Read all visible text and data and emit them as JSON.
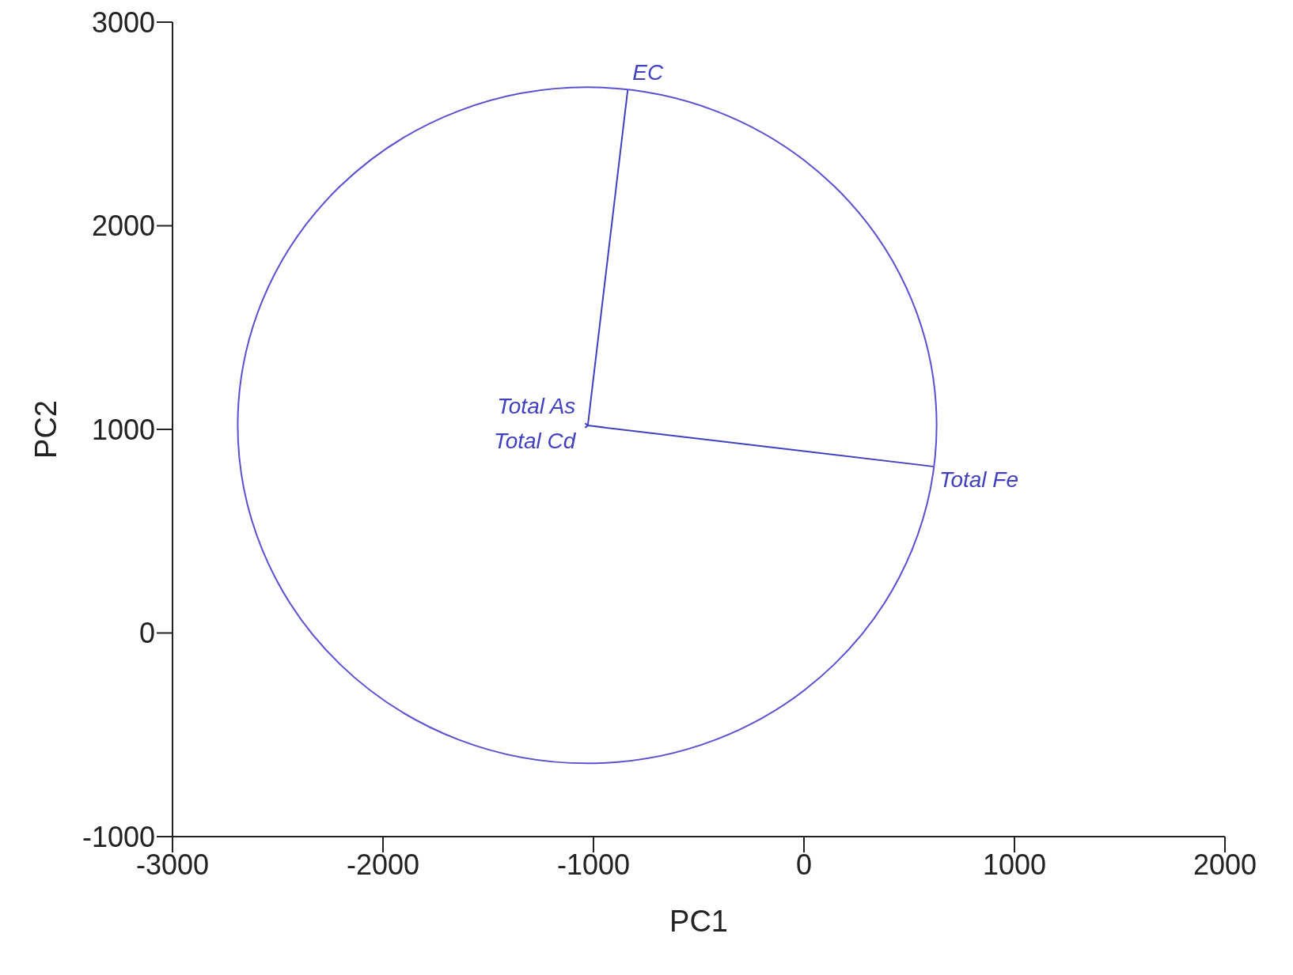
{
  "chart_data": {
    "type": "line",
    "xlabel": "PC1",
    "ylabel": "PC2",
    "xlim": [
      -3000,
      2000
    ],
    "ylim": [
      -1000,
      3000
    ],
    "xticks": [
      -3000,
      -2000,
      -1000,
      0,
      1000,
      2000
    ],
    "yticks": [
      -1000,
      0,
      1000,
      2000,
      3000
    ],
    "marker": "none",
    "line_style": "solid",
    "series": [
      {
        "name": "EC",
        "color": "#4040c0",
        "x": [
          -1027,
          -837
        ],
        "values": [
          1019,
          2670
        ]
      },
      {
        "name": "Total Fe",
        "color": "#4040c0",
        "x": [
          -1027,
          620
        ],
        "values": [
          1019,
          817
        ]
      },
      {
        "name": "Total As",
        "color": "#4040c0",
        "x": [
          -1027,
          -1040
        ],
        "values": [
          1019,
          1030
        ]
      },
      {
        "name": "Total Cd",
        "color": "#4040c0",
        "x": [
          -1027,
          -1040
        ],
        "values": [
          1019,
          1008
        ]
      }
    ]
  }
}
